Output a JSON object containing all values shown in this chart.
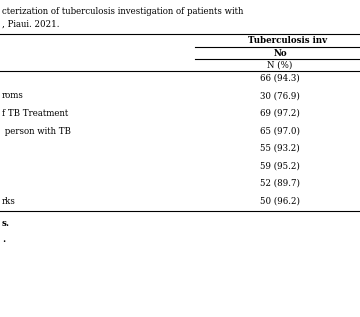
{
  "title_line1": "cterization of tuberculosis investigation of patients with",
  "title_line2": ", Piaui. 2021.",
  "header1": "Tuberculosis inv",
  "header2": "No",
  "header3": "N (%)",
  "rows": [
    {
      "label": "",
      "value": "66 (94.3)"
    },
    {
      "label": "roms",
      "value": "30 (76.9)"
    },
    {
      "label": "f TB Treatment",
      "value": "69 (97.2)"
    },
    {
      "label": " person with TB",
      "value": "65 (97.0)"
    },
    {
      "label": "",
      "value": "55 (93.2)"
    },
    {
      "label": "",
      "value": "59 (95.2)"
    },
    {
      "label": "",
      "value": "52 (89.7)"
    },
    {
      "label": "rks",
      "value": "50 (96.2)"
    }
  ],
  "footnote1": "s.",
  "footnote2": ".",
  "bg_color": "#ffffff",
  "line_color": "#000000",
  "font_size": 6.2,
  "title_font_size": 6.2
}
